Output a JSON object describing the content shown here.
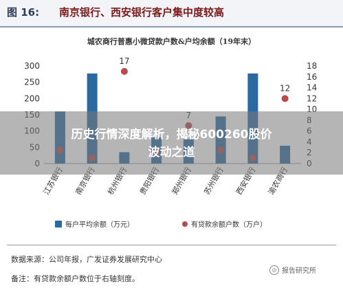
{
  "figure": {
    "number": "图 16:",
    "title": "南京银行、西安银行客户集中度较高"
  },
  "chart_data": {
    "type": "bar",
    "title": "城农商行普惠小微贷款户数&户均余额（19年末）",
    "categories": [
      "江苏银行",
      "南京银行",
      "杭州银行",
      "贵阳银行",
      "郑州银行",
      "苏州银行",
      "西安银行",
      "渝农商行"
    ],
    "left_axis": {
      "ylim": [
        0,
        300
      ],
      "ticks": [
        0,
        50,
        100,
        150,
        200,
        250,
        300
      ]
    },
    "right_axis": {
      "ylim": [
        0,
        18
      ],
      "ticks": [
        0,
        2,
        4,
        6,
        8,
        10,
        12,
        14,
        16,
        18
      ]
    },
    "series": [
      {
        "name": "每户平均余额（万元）",
        "type": "bar",
        "axis": "left",
        "color": "#2b6aa0",
        "values": [
          160,
          277,
          35,
          80,
          75,
          145,
          277,
          55
        ]
      },
      {
        "name": "有贷款余额户数（万户）",
        "type": "scatter",
        "axis": "right",
        "color": "#b94b4b",
        "values": [
          2.5,
          1.0,
          17,
          2.0,
          7,
          2.5,
          1.0,
          12
        ]
      }
    ],
    "point_labels": [
      {
        "index": 2,
        "text": "17"
      },
      {
        "index": 4,
        "text": "7"
      },
      {
        "index": 7,
        "text": "12"
      }
    ],
    "legend_position": "bottom",
    "grid": false
  },
  "footer": {
    "source": "数据来源：公司年报，广发证券发展研究中心",
    "note": "备注：有贷款余额户数位于右轴刻度。",
    "watermark": "报告研究所"
  },
  "overlay": {
    "line1": "历史行情深度解析，揭秘600260股价",
    "line2": "波动之道"
  },
  "colors": {
    "bar": "#2b6aa0",
    "dot": "#b94b4b",
    "title_red": "#7b1a1a"
  }
}
